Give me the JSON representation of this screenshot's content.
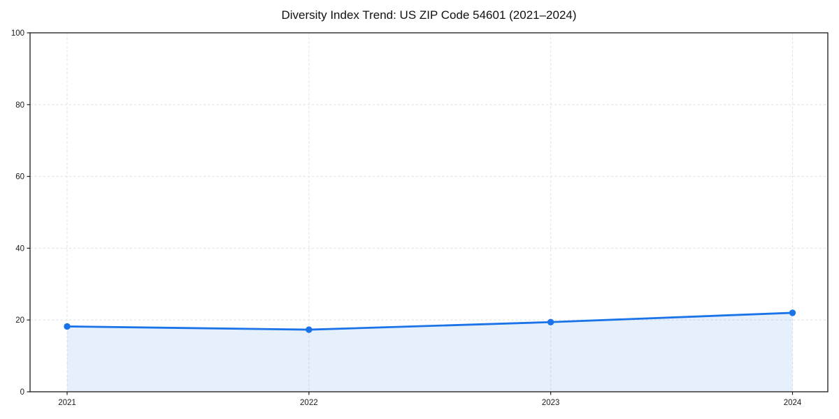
{
  "page": {
    "background_color": "#ffffff"
  },
  "chart_data": {
    "type": "area",
    "title": "Diversity Index Trend: US ZIP Code 54601 (2021–2024)",
    "x": [
      "2021",
      "2022",
      "2023",
      "2024"
    ],
    "series": [
      {
        "name": "Diversity Index",
        "values": [
          18.2,
          17.3,
          19.4,
          22.0
        ]
      }
    ],
    "xlabel": "",
    "ylabel": "",
    "ylim": [
      0,
      100
    ],
    "yticks": [
      0,
      20,
      40,
      60,
      80,
      100
    ],
    "grid": true,
    "grid_style": "dashed",
    "legend_position": "none",
    "line_color": "#1a73e8",
    "marker": "circle",
    "fill_color": "#1a73e8",
    "fill_opacity": 0.11,
    "grid_color": "#e4e4e4",
    "spine_color": "#1a1a1a",
    "tick_color": "#1a1a1a",
    "tick_label_color": "#1a1a1a",
    "title_color": "#111111"
  }
}
